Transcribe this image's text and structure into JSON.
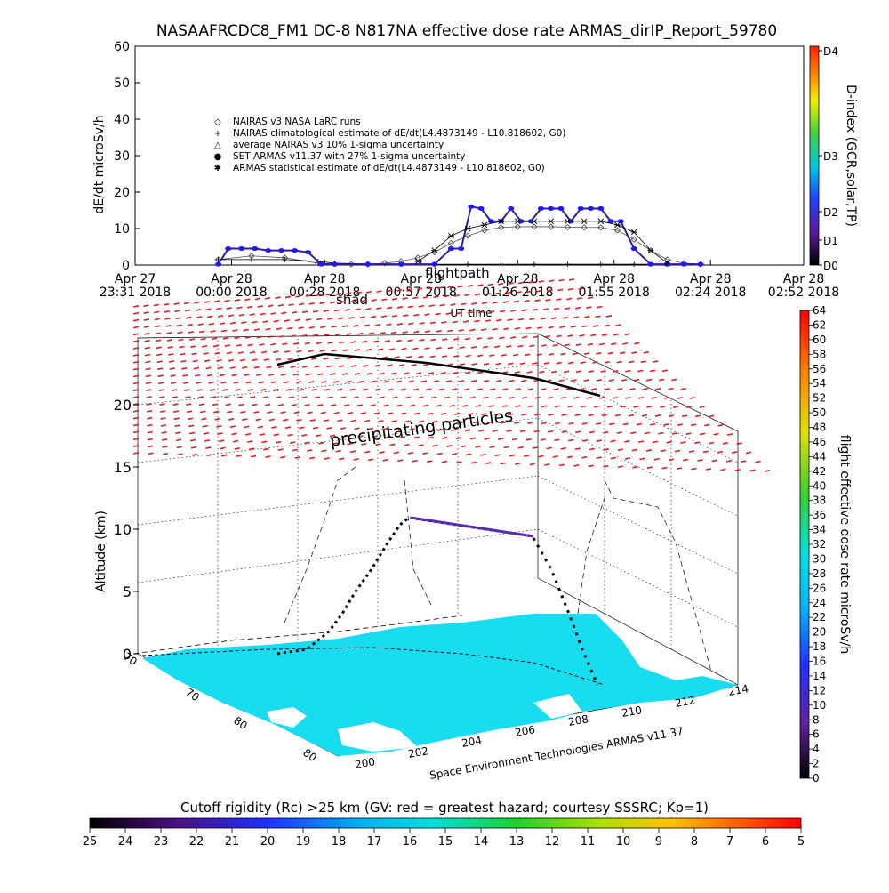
{
  "header": {
    "title": "NASAAFRCDC8_FM1 DC-8    N817NA effective dose rate ARMAS_dirIP_Report_59780"
  },
  "chart_data": [
    {
      "type": "line",
      "ylabel": "dE/dt microSv/h",
      "xlabel": "UT time",
      "ylim": [
        0,
        60
      ],
      "y_ticks": [
        "0",
        "10",
        "20",
        "30",
        "40",
        "50",
        "60"
      ],
      "x_ticks": [
        {
          "line1": "Apr 27",
          "line2": "23:31 2018"
        },
        {
          "line1": "Apr 28",
          "line2": "00:00 2018"
        },
        {
          "line1": "Apr 28",
          "line2": "00:28 2018"
        },
        {
          "line1": "Apr 28",
          "line2": "00:57 2018"
        },
        {
          "line1": "Apr 28",
          "line2": "01:26 2018"
        },
        {
          "line1": "Apr 28",
          "line2": "01:55 2018"
        },
        {
          "line1": "Apr 28",
          "line2": "02:24 2018"
        },
        {
          "line1": "Apr 28",
          "line2": "02:52 2018"
        }
      ],
      "x_tick_minutes": [
        0,
        29,
        57,
        86,
        115,
        144,
        173,
        201
      ],
      "overlay_labels": {
        "shadow": "shad",
        "flightpath": "flightpath"
      },
      "legend": [
        {
          "symbol": "◇",
          "label": "NAIRAS v3 NASA LaRC runs"
        },
        {
          "symbol": "+",
          "label": "NAIRAS climatological estimate of dE/dt(L4.4873149 - L10.818602, G0)"
        },
        {
          "symbol": "△",
          "label": "average NAIRAS v3 10% 1-sigma uncertainty"
        },
        {
          "symbol": "●",
          "label": "SET ARMAS v11.37 with 27% 1-sigma uncertainty"
        },
        {
          "symbol": "✱",
          "label": "ARMAS statistical estimate of dE/dt(L4.4873149 - L10.818602, G0)"
        }
      ],
      "legend_placement": "upper-left inside plot",
      "series": [
        {
          "name": "NAIRAS v3 NASA LaRC runs",
          "x_minutes": [
            25,
            35,
            45,
            55,
            60,
            65,
            70,
            75,
            80,
            85,
            90,
            95,
            100,
            105,
            110,
            115,
            120,
            125,
            130,
            135,
            140,
            145,
            150,
            155,
            160,
            165,
            170
          ],
          "values": [
            1.5,
            2.5,
            2,
            0.5,
            0.3,
            0.2,
            0.2,
            0.5,
            1,
            2,
            3.5,
            6,
            8,
            9.5,
            10.3,
            10.5,
            10.5,
            10.5,
            10.4,
            10.3,
            10.3,
            9.5,
            7,
            4,
            1.5,
            0.5,
            0.2
          ]
        },
        {
          "name": "NAIRAS climatological estimate of dE/dt(L4.4873149 - L10.818602, G0)",
          "x_minutes": [
            25,
            35,
            45,
            55,
            60,
            70,
            80,
            90,
            100,
            110,
            120,
            130,
            140,
            150,
            160,
            170
          ],
          "values": [
            1.5,
            1.5,
            1.5,
            1,
            0.5,
            0.3,
            0.2,
            0.2,
            0.2,
            0.2,
            0.2,
            0.2,
            0.2,
            0.2,
            0.2,
            0.2
          ]
        },
        {
          "name": "SET ARMAS v11.37 with 27% 1-sigma uncertainty",
          "x_minutes": [
            25,
            28,
            32,
            36,
            40,
            44,
            48,
            52,
            56,
            60,
            70,
            80,
            90,
            95,
            98,
            101,
            104,
            107,
            110,
            113,
            116,
            119,
            122,
            125,
            128,
            131,
            134,
            137,
            140,
            143,
            146,
            150,
            155,
            160,
            165,
            170
          ],
          "values": [
            0.2,
            4.5,
            4.5,
            4.5,
            4,
            4,
            4,
            3.5,
            0.2,
            0.2,
            0.2,
            0.2,
            0.2,
            4.5,
            4.5,
            16,
            15.5,
            12,
            12,
            15.5,
            12,
            12,
            15.5,
            15.5,
            15.5,
            12,
            15.5,
            15.5,
            15.5,
            12,
            12,
            4.5,
            0.2,
            0.2,
            0.2,
            0.2
          ]
        },
        {
          "name": "ARMAS statistical estimate of dE/dt(L4.4873149 - L10.818602, G0)",
          "x_minutes": [
            85,
            90,
            95,
            100,
            105,
            110,
            115,
            120,
            125,
            130,
            135,
            140,
            145,
            150,
            155,
            160
          ],
          "values": [
            1,
            4,
            8,
            10,
            11,
            12,
            12,
            12,
            12,
            12,
            12,
            12,
            11,
            9,
            4,
            0.5
          ]
        }
      ],
      "right_axis": {
        "label": "D-index (GCR,solar,TP)",
        "ticks": [
          "D0",
          "D1",
          "D2",
          "D3",
          "D4"
        ]
      }
    },
    {
      "type": "scatter",
      "title": "",
      "zlabel": "Altitude (km)",
      "z_ticks": [
        "0",
        "5",
        "10",
        "15",
        "20"
      ],
      "lat_ticks": [
        "70",
        "70",
        "80",
        "80"
      ],
      "lon_ticks": [
        "200",
        "202",
        "204",
        "206",
        "208",
        "210",
        "212",
        "214"
      ],
      "annotation": "precipitating particles",
      "credit": "Space Environment Technologies ARMAS v11.37",
      "colorbar": {
        "label": "flight effective dose rate microSv/h",
        "ticks": [
          "0",
          "2",
          "4",
          "6",
          "8",
          "10",
          "12",
          "14",
          "16",
          "18",
          "20",
          "22",
          "24",
          "26",
          "28",
          "30",
          "32",
          "34",
          "36",
          "38",
          "40",
          "42",
          "44",
          "46",
          "48",
          "50",
          "52",
          "54",
          "56",
          "58",
          "60",
          "62",
          "64"
        ]
      }
    },
    {
      "type": "heatmap",
      "title": "Cutoff rigidity (Rc) >25 km (GV: red = greatest hazard; courtesy SSSRC; Kp=1)",
      "ticks": [
        "25",
        "24",
        "23",
        "22",
        "21",
        "20",
        "19",
        "18",
        "17",
        "16",
        "15",
        "14",
        "13",
        "12",
        "11",
        "10",
        "9",
        "8",
        "7",
        "6",
        "5"
      ]
    }
  ],
  "colors": {
    "armas_points": "#1a1aff",
    "armas_path": "#5a2bb0",
    "precip_particles": "#e02020",
    "ocean": "#18dcf0",
    "land": "#ffffff",
    "dindex_scale": [
      "#000000",
      "#5a1a9a",
      "#2040ff",
      "#00c8e0",
      "#40d040",
      "#f0f000",
      "#ff8000",
      "#ff2000"
    ],
    "dose_scale": [
      "#000000",
      "#6020a0",
      "#2030ff",
      "#00b0ff",
      "#00e0e0",
      "#30d030",
      "#e0e000",
      "#ff8000",
      "#ff0000"
    ],
    "rigidity_scale": [
      "#000000",
      "#4a1080",
      "#2030ff",
      "#00b0f0",
      "#00e0e0",
      "#20d030",
      "#b0e000",
      "#ffc000",
      "#ff6000",
      "#ff0000"
    ]
  }
}
